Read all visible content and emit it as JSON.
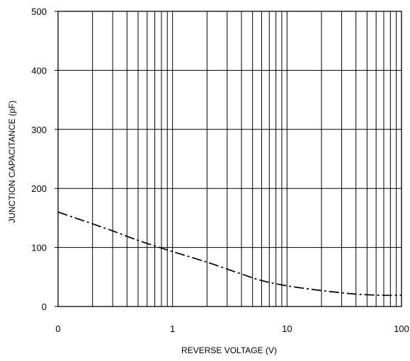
{
  "chart_data": {
    "type": "line",
    "title": "",
    "xlabel": "REVERSE VOLTAGE (V)",
    "ylabel": "JUNCTION CAPACITANCE  (pF)",
    "xscale": "log",
    "xlim": [
      0.1,
      100
    ],
    "ylim": [
      0,
      500
    ],
    "xticks": [
      {
        "value": 0.1,
        "label": "0"
      },
      {
        "value": 1,
        "label": "1"
      },
      {
        "value": 10,
        "label": "10"
      },
      {
        "value": 100,
        "label": "100"
      }
    ],
    "yticks": [
      {
        "value": 0,
        "label": "0"
      },
      {
        "value": 100,
        "label": "100"
      },
      {
        "value": 200,
        "label": "200"
      },
      {
        "value": 300,
        "label": "300"
      },
      {
        "value": 400,
        "label": "400"
      },
      {
        "value": 500,
        "label": "500"
      }
    ],
    "grid": true,
    "series": [
      {
        "line_style": "dash-dot",
        "color": "#000000",
        "x": [
          0.1,
          0.2,
          0.3,
          0.5,
          0.8,
          1,
          2,
          4,
          6,
          10,
          20,
          40,
          70,
          100
        ],
        "y": [
          160,
          140,
          128,
          112,
          99,
          93,
          75,
          55,
          44,
          35,
          27,
          21,
          19,
          19
        ]
      }
    ]
  }
}
